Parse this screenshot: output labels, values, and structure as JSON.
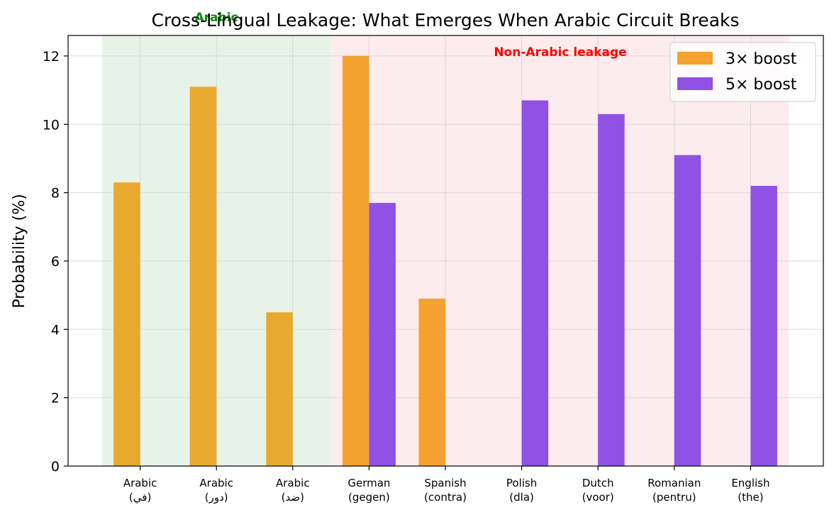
{
  "chart_data": {
    "type": "bar",
    "title": "Cross-Lingual Leakage: What Emerges When Arabic Circuit Breaks",
    "xlabel": "",
    "ylabel": "Probability (%)",
    "ylim": [
      0,
      12.6
    ],
    "yticks": [
      0,
      2,
      4,
      6,
      8,
      10,
      12
    ],
    "grid": true,
    "legend_position": "top-right",
    "categories": [
      [
        "Arabic",
        "(في)"
      ],
      [
        "Arabic",
        "(دور)"
      ],
      [
        "Arabic",
        "(ضد)"
      ],
      [
        "German",
        "(gegen)"
      ],
      [
        "Spanish",
        "(contra)"
      ],
      [
        "Polish",
        "(dla)"
      ],
      [
        "Dutch",
        "(voor)"
      ],
      [
        "Romanian",
        "(pentru)"
      ],
      [
        "English",
        "(the)"
      ]
    ],
    "series": [
      {
        "name": "3× boost",
        "color": "#f4a130",
        "values": [
          8.3,
          11.1,
          4.5,
          12.0,
          4.9,
          0,
          0,
          0,
          0
        ]
      },
      {
        "name": "5× boost",
        "color": "#8f52e4",
        "values": [
          0,
          0,
          0,
          7.7,
          0,
          10.7,
          10.3,
          9.1,
          8.2
        ]
      }
    ],
    "arabic_bar_color": "#e8aa2e",
    "regions": [
      {
        "label": "Arabic",
        "from_category": 0,
        "to_category": 2,
        "fill": "#e8f3e8",
        "label_color": "#0a8a0a"
      },
      {
        "label": "Non-Arabic leakage",
        "from_category": 3,
        "to_category": 8,
        "fill": "#fdecee",
        "label_color": "#ff0000"
      }
    ]
  }
}
